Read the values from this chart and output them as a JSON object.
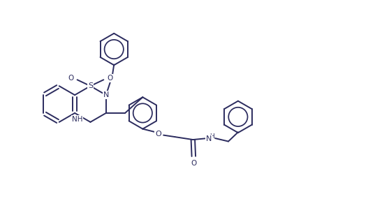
{
  "background_color": "#ffffff",
  "line_color": "#2b2b5e",
  "line_width": 1.4,
  "figsize": [
    5.27,
    3.08
  ],
  "dpi": 100,
  "xlim": [
    0,
    10.5
  ],
  "ylim": [
    0,
    6
  ]
}
